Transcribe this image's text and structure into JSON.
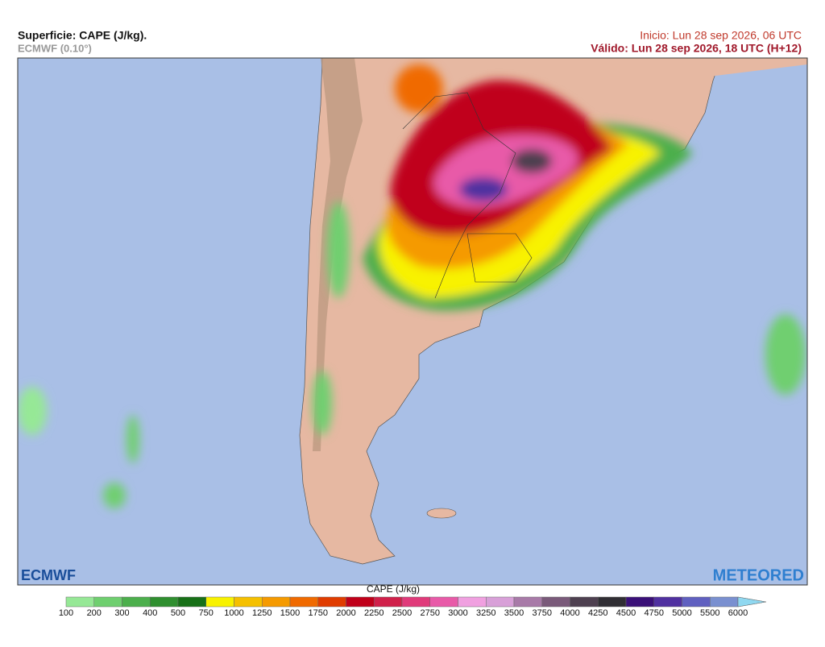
{
  "header": {
    "title": "Superficie: CAPE (J/kg).",
    "model": "ECMWF (0.10°)",
    "init": "Inicio: Lun 28 sep 2026, 06 UTC",
    "valid": "Válido: Lun 28 sep 2026, 18 UTC (H+12)"
  },
  "logos": {
    "left": "ECMWF",
    "right": "METEORED"
  },
  "colorbar": {
    "title": "CAPE (J/kg)",
    "ticks": [
      100,
      200,
      300,
      400,
      500,
      750,
      1000,
      1250,
      1500,
      1750,
      2000,
      2250,
      2500,
      2750,
      3000,
      3250,
      3500,
      3750,
      4000,
      4250,
      4500,
      4750,
      5000,
      5500,
      6000
    ],
    "colors": [
      "#96e896",
      "#6fcf6f",
      "#4caf4c",
      "#2f8f2f",
      "#177017",
      "#f8f200",
      "#f5c000",
      "#f59a00",
      "#f06a00",
      "#e03c00",
      "#c0001a",
      "#d0204a",
      "#e03a7a",
      "#e85aa8",
      "#f0a0e0",
      "#d8a0d8",
      "#a87aa8",
      "#7a5a7a",
      "#4e4050",
      "#302e34",
      "#3a1078",
      "#5030a0",
      "#6060c0",
      "#7a90d0",
      "#8cc0e8",
      "#90d8f0"
    ]
  }
}
